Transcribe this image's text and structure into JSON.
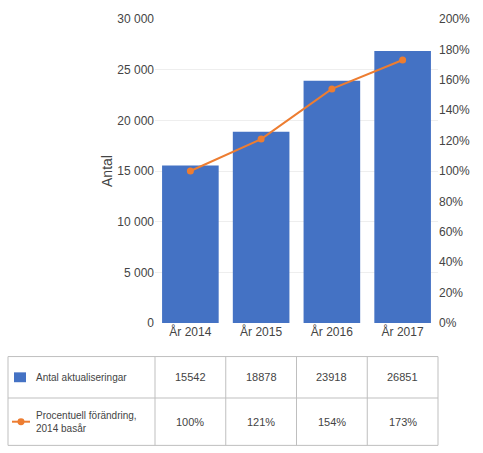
{
  "chart_data": {
    "type": "bar",
    "categories": [
      "År 2014",
      "År 2015",
      "År 2016",
      "År 2017"
    ],
    "ylabel": "Antal",
    "ylim": [
      0,
      30000
    ],
    "yticks": [
      0,
      {
        "value": 5000,
        "label": "5 000"
      },
      {
        "value": 10000,
        "label": "10 000"
      },
      {
        "value": 15000,
        "label": "15 000"
      },
      {
        "value": 20000,
        "label": "20 000"
      },
      {
        "value": 25000,
        "label": "25 000"
      },
      {
        "value": 30000,
        "label": "30 000"
      }
    ],
    "y2lim": [
      0.0,
      2.0
    ],
    "y2ticks": [
      {
        "value": 0.0,
        "label": "0%"
      },
      {
        "value": 0.2,
        "label": "20%"
      },
      {
        "value": 0.4,
        "label": "40%"
      },
      {
        "value": 0.6,
        "label": "60%"
      },
      {
        "value": 0.8,
        "label": "80%"
      },
      {
        "value": 1.0,
        "label": "100%"
      },
      {
        "value": 1.2,
        "label": "120%"
      },
      {
        "value": 1.4,
        "label": "140%"
      },
      {
        "value": 1.6,
        "label": "160%"
      },
      {
        "value": 1.8,
        "label": "180%"
      },
      {
        "value": 2.0,
        "label": "200%"
      }
    ],
    "grid": true,
    "data_labels": true,
    "series": [
      {
        "name": "Antal aktualiseringar",
        "type": "bar",
        "color": "#4472C4",
        "values": [
          15542,
          18878,
          23918,
          26851
        ]
      },
      {
        "name": "Procentuell förändring,\n2014 basår",
        "type": "line",
        "axis": "y2",
        "color": "#ED7D31",
        "marker": "circle",
        "values": [
          1.0,
          1.21,
          1.54,
          1.73
        ],
        "value_labels": [
          "100%",
          "121%",
          "154%",
          "173%"
        ]
      }
    ]
  }
}
